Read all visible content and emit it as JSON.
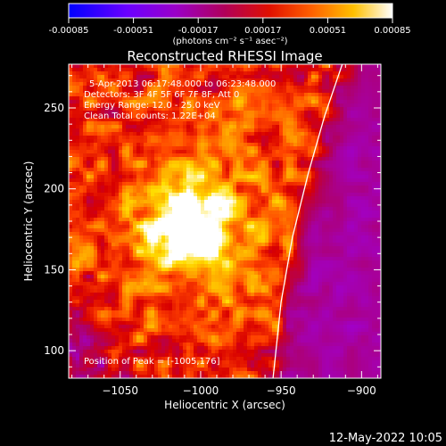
{
  "colorbar": {
    "ticks": [
      "-0.00085",
      "-0.00051",
      "-0.00017",
      "0.00017",
      "0.00051",
      "0.00085"
    ],
    "unit_label": "(photons cm⁻² s⁻¹ asec⁻²)"
  },
  "chart_data": {
    "type": "heatmap",
    "title": "Reconstructed RHESSI Image",
    "xlabel": "Heliocentric X (arcsec)",
    "ylabel": "Heliocentric Y (arcsec)",
    "xlim": [
      -1082,
      -888
    ],
    "ylim": [
      83,
      277
    ],
    "x_ticks": [
      -1050,
      -1000,
      -950,
      -900
    ],
    "x_tick_labels": [
      "−1050",
      "−1000",
      "−950",
      "−900"
    ],
    "y_ticks": [
      100,
      150,
      200,
      250
    ],
    "y_tick_labels": [
      "100",
      "150",
      "200",
      "250"
    ],
    "value_range": [
      -0.00085,
      0.00085
    ],
    "peak": [
      -1005,
      176
    ],
    "limb_curve": [
      [
        -955,
        83
      ],
      [
        -950,
        130
      ],
      [
        -943,
        170
      ],
      [
        -933,
        210
      ],
      [
        -923,
        245
      ],
      [
        -912,
        277
      ]
    ],
    "colormap": [
      "#0000ff",
      "#7a00ff",
      "#a000d0",
      "#b00060",
      "#d80000",
      "#ff4400",
      "#ff9900",
      "#ffdd00",
      "#ffffff"
    ],
    "annotations": [
      "5-Apr-2013 06:17:48.000 to 06:23:48.000",
      "Detectors: 3F 4F 5F 6F 7F 8F, Att 0",
      "Energy Range: 12.0 - 25.0 keV",
      "Clean     Total counts: 1.22E+04"
    ],
    "peak_label": "Position of Peak = [-1005,176]"
  },
  "footer": {
    "timestamp": "12-May-2022 10:05"
  }
}
